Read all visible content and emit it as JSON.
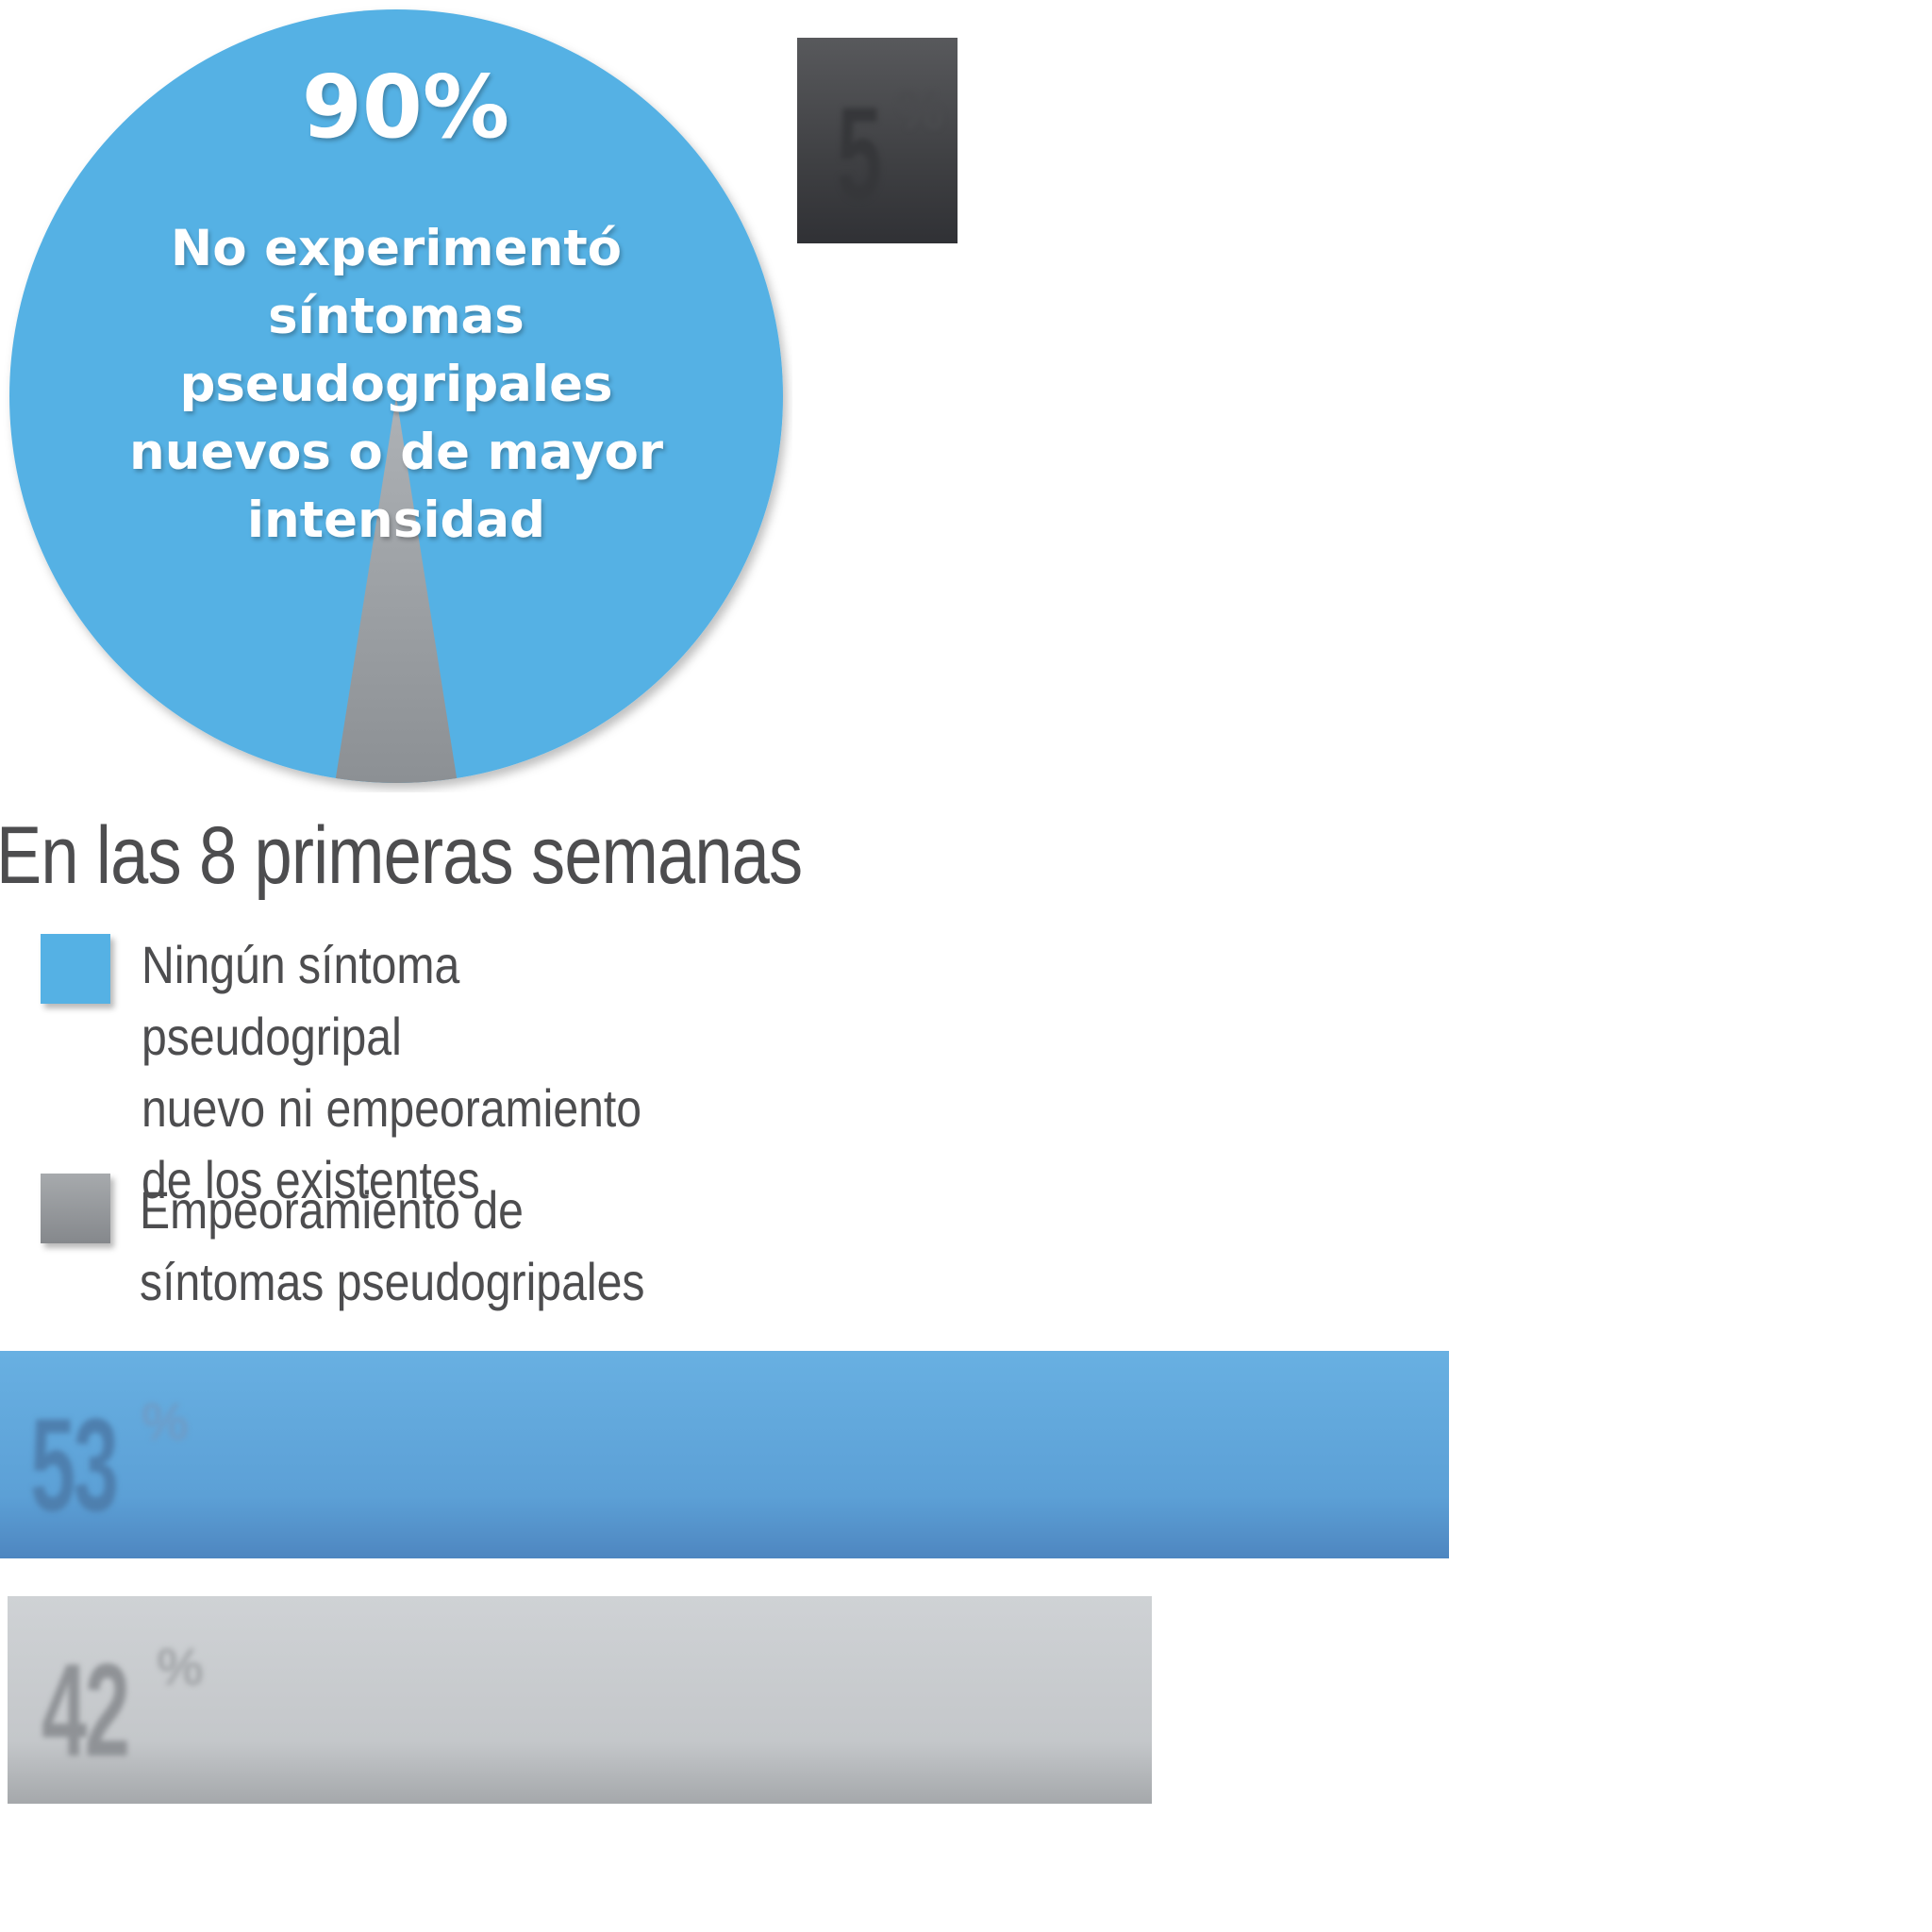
{
  "chart_data": [
    {
      "type": "pie",
      "slices": [
        {
          "label": "No experimentó síntomas pseudogripales nuevos o de mayor intensidad",
          "value": 90,
          "color": "#55b1e4"
        },
        {
          "label": "",
          "value": 5,
          "color": "#9fa3a7"
        },
        {
          "label": "",
          "value": 5,
          "color": "#55b1e4"
        }
      ],
      "value_label": "90%",
      "caption": "No experimentó\nsíntomas\npseudogripales\nnuevos o de mayor\nintensidad"
    },
    {
      "type": "bar",
      "orientation": "horizontal",
      "title": "En las 8 primeras semanas",
      "categories": [
        "Ningún síntoma pseudogripal nuevo ni empeoramiento de los existentes",
        "Empeoramiento de síntomas pseudogripales",
        ""
      ],
      "values": [
        53,
        42,
        5
      ],
      "value_labels": [
        {
          "num": "53",
          "unit": "%"
        },
        {
          "num": "42",
          "unit": "%"
        },
        {
          "num": "5",
          "unit": "%"
        }
      ],
      "colors": [
        "#5ca8dd",
        "#c6c9cc",
        "#3f4043"
      ],
      "xlim": [
        0,
        100
      ],
      "legend": [
        {
          "label": "Ningún síntoma pseudogripal\nnuevo ni empeoramiento\nde los existentes",
          "color": "#55b1e4"
        },
        {
          "label": "Empeoramiento de\nsíntomas pseudogripales",
          "color": "#9a9da1"
        }
      ]
    }
  ]
}
